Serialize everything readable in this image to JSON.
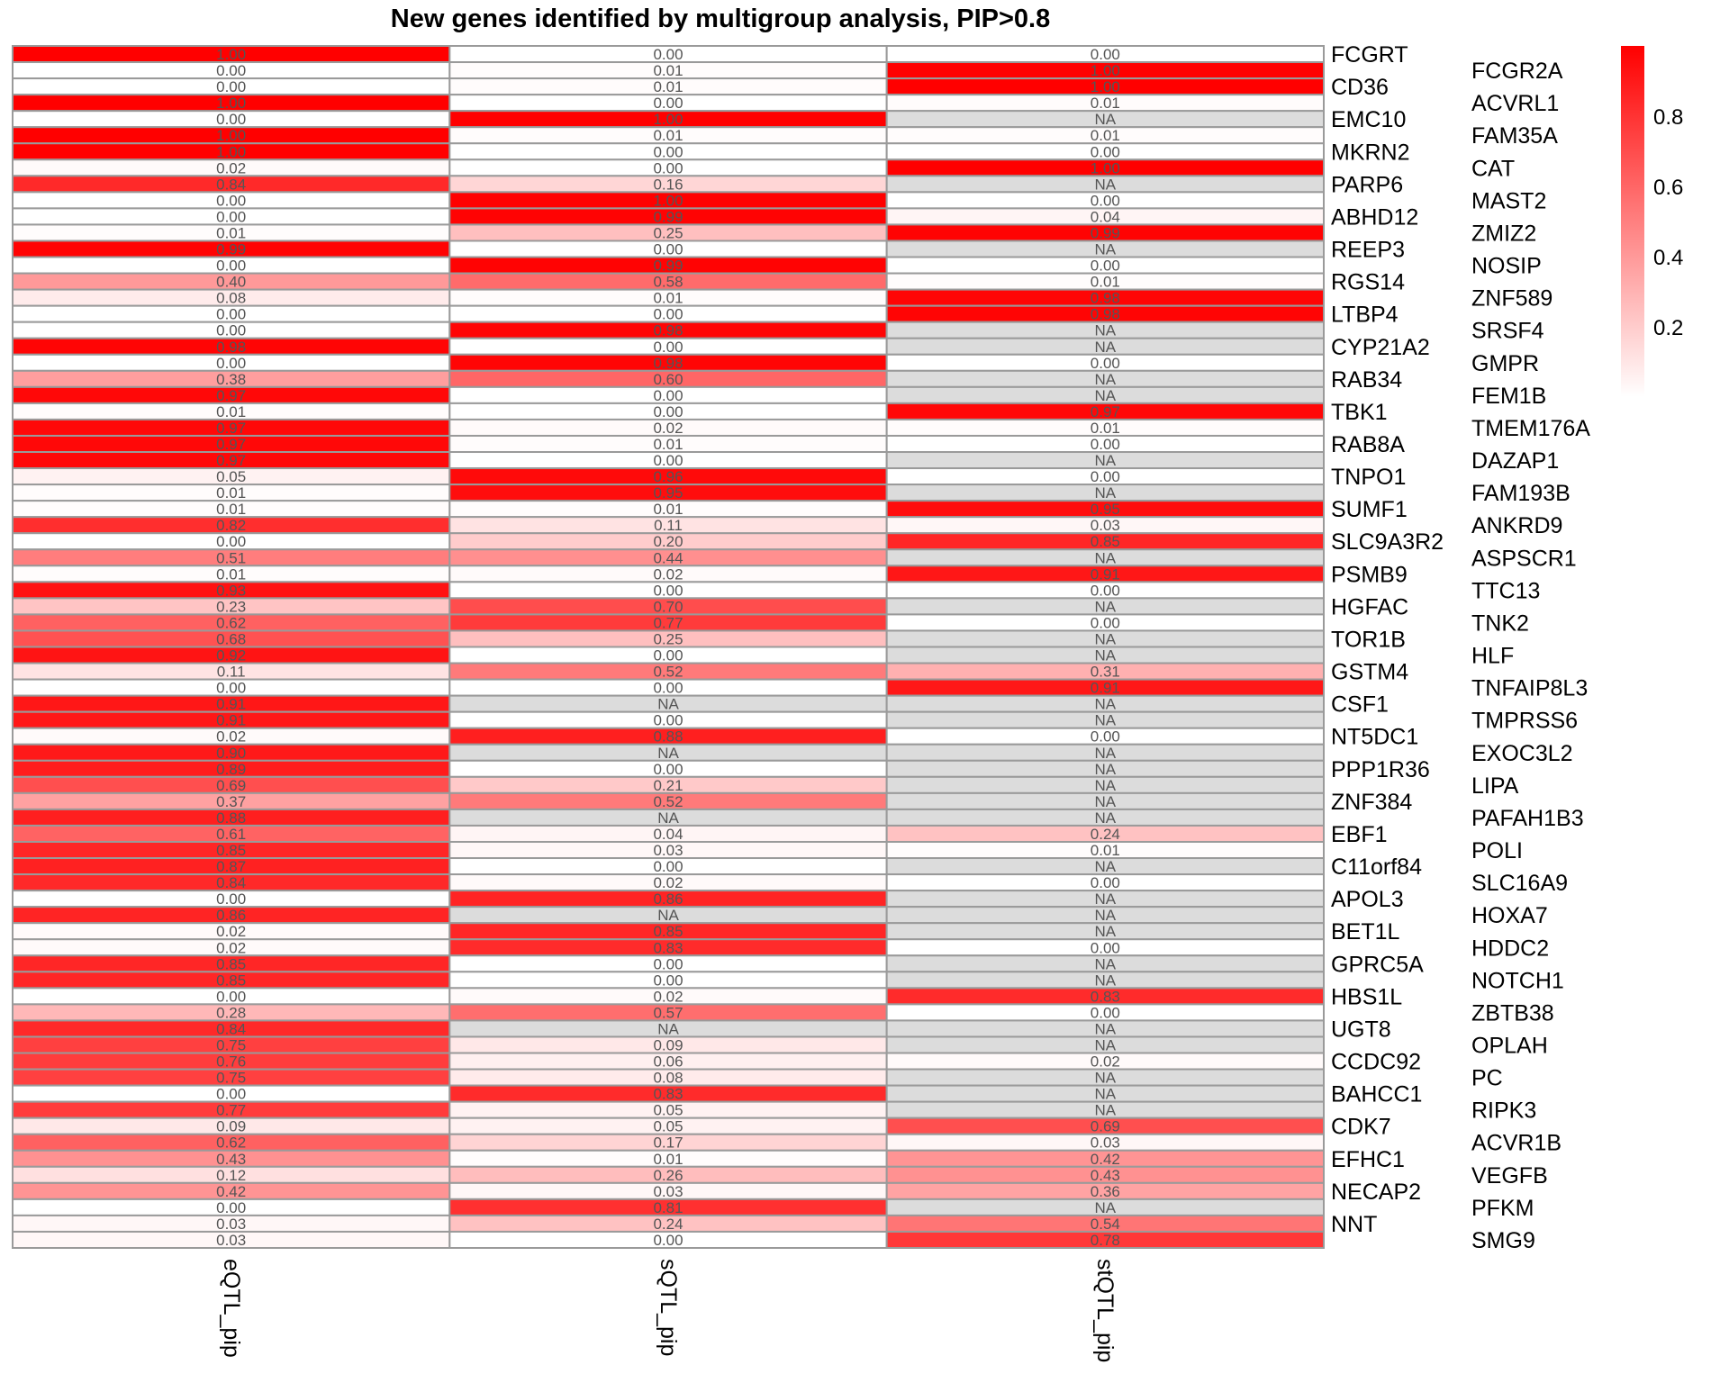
{
  "chart_data": {
    "type": "heatmap",
    "title": "New genes identified by multigroup analysis, PIP>0.8",
    "columns": [
      "eQTL_pip",
      "sQTL_pip",
      "stQTL_pip"
    ],
    "na_label": "NA",
    "value_range": [
      0,
      1
    ],
    "colors": {
      "low": "#ffffff",
      "high": "#ff0000",
      "na": "#dcdcdc",
      "border": "#9a9a9a",
      "cell_text": "#555555"
    },
    "legend": {
      "position": "right",
      "ticks": [
        0.2,
        0.4,
        0.6,
        0.8
      ],
      "tick_labels": [
        "0.2",
        "0.4",
        "0.6",
        "0.8"
      ]
    },
    "rows": [
      {
        "gene": "FCGRT",
        "values": [
          1.0,
          0.0,
          0.0
        ]
      },
      {
        "gene": "FCGR2A",
        "values": [
          0.0,
          0.01,
          1.0
        ]
      },
      {
        "gene": "CD36",
        "values": [
          0.0,
          0.01,
          1.0
        ]
      },
      {
        "gene": "ACVRL1",
        "values": [
          1.0,
          0.0,
          0.01
        ]
      },
      {
        "gene": "EMC10",
        "values": [
          0.0,
          1.0,
          null
        ]
      },
      {
        "gene": "FAM35A",
        "values": [
          1.0,
          0.01,
          0.01
        ]
      },
      {
        "gene": "MKRN2",
        "values": [
          1.0,
          0.0,
          0.0
        ]
      },
      {
        "gene": "CAT",
        "values": [
          0.02,
          0.0,
          1.0
        ]
      },
      {
        "gene": "PARP6",
        "values": [
          0.84,
          0.16,
          null
        ]
      },
      {
        "gene": "MAST2",
        "values": [
          0.0,
          1.0,
          0.0
        ]
      },
      {
        "gene": "ABHD12",
        "values": [
          0.0,
          0.99,
          0.04
        ]
      },
      {
        "gene": "ZMIZ2",
        "values": [
          0.01,
          0.25,
          0.99
        ]
      },
      {
        "gene": "REEP3",
        "values": [
          0.99,
          0.0,
          null
        ]
      },
      {
        "gene": "NOSIP",
        "values": [
          0.0,
          0.99,
          0.0
        ]
      },
      {
        "gene": "RGS14",
        "values": [
          0.4,
          0.58,
          0.01
        ]
      },
      {
        "gene": "ZNF589",
        "values": [
          0.08,
          0.01,
          0.98
        ]
      },
      {
        "gene": "LTBP4",
        "values": [
          0.0,
          0.0,
          0.98
        ]
      },
      {
        "gene": "SRSF4",
        "values": [
          0.0,
          0.98,
          null
        ]
      },
      {
        "gene": "CYP21A2",
        "values": [
          0.98,
          0.0,
          null
        ]
      },
      {
        "gene": "GMPR",
        "values": [
          0.0,
          0.98,
          0.0
        ]
      },
      {
        "gene": "RAB34",
        "values": [
          0.38,
          0.6,
          null
        ]
      },
      {
        "gene": "FEM1B",
        "values": [
          0.97,
          0.0,
          null
        ]
      },
      {
        "gene": "TBK1",
        "values": [
          0.01,
          0.0,
          0.97
        ]
      },
      {
        "gene": "TMEM176A",
        "values": [
          0.97,
          0.02,
          0.01
        ]
      },
      {
        "gene": "RAB8A",
        "values": [
          0.97,
          0.01,
          0.0
        ]
      },
      {
        "gene": "DAZAP1",
        "values": [
          0.97,
          0.0,
          null
        ]
      },
      {
        "gene": "TNPO1",
        "values": [
          0.05,
          0.96,
          0.0
        ]
      },
      {
        "gene": "FAM193B",
        "values": [
          0.01,
          0.95,
          null
        ]
      },
      {
        "gene": "SUMF1",
        "values": [
          0.01,
          0.01,
          0.95
        ]
      },
      {
        "gene": "ANKRD9",
        "values": [
          0.82,
          0.11,
          0.03
        ]
      },
      {
        "gene": "SLC9A3R2",
        "values": [
          0.0,
          0.2,
          0.85
        ]
      },
      {
        "gene": "ASPSCR1",
        "values": [
          0.51,
          0.44,
          null
        ]
      },
      {
        "gene": "PSMB9",
        "values": [
          0.01,
          0.02,
          0.91
        ]
      },
      {
        "gene": "TTC13",
        "values": [
          0.93,
          0.0,
          0.0
        ]
      },
      {
        "gene": "HGFAC",
        "values": [
          0.23,
          0.7,
          null
        ]
      },
      {
        "gene": "TNK2",
        "values": [
          0.62,
          0.77,
          0.0
        ]
      },
      {
        "gene": "TOR1B",
        "values": [
          0.68,
          0.25,
          null
        ]
      },
      {
        "gene": "HLF",
        "values": [
          0.92,
          0.0,
          null
        ]
      },
      {
        "gene": "GSTM4",
        "values": [
          0.11,
          0.52,
          0.31
        ]
      },
      {
        "gene": "TNFAIP8L3",
        "values": [
          0.0,
          0.0,
          0.91
        ]
      },
      {
        "gene": "CSF1",
        "values": [
          0.91,
          null,
          null
        ]
      },
      {
        "gene": "TMPRSS6",
        "values": [
          0.91,
          0.0,
          null
        ]
      },
      {
        "gene": "NT5DC1",
        "values": [
          0.02,
          0.88,
          0.0
        ]
      },
      {
        "gene": "EXOC3L2",
        "values": [
          0.9,
          null,
          null
        ]
      },
      {
        "gene": "PPP1R36",
        "values": [
          0.89,
          0.0,
          null
        ]
      },
      {
        "gene": "LIPA",
        "values": [
          0.69,
          0.21,
          null
        ]
      },
      {
        "gene": "ZNF384",
        "values": [
          0.37,
          0.52,
          null
        ]
      },
      {
        "gene": "PAFAH1B3",
        "values": [
          0.88,
          null,
          null
        ]
      },
      {
        "gene": "EBF1",
        "values": [
          0.61,
          0.04,
          0.24
        ]
      },
      {
        "gene": "POLI",
        "values": [
          0.85,
          0.03,
          0.01
        ]
      },
      {
        "gene": "C11orf84",
        "values": [
          0.87,
          0.0,
          null
        ]
      },
      {
        "gene": "SLC16A9",
        "values": [
          0.84,
          0.02,
          0.0
        ]
      },
      {
        "gene": "APOL3",
        "values": [
          0.0,
          0.86,
          null
        ]
      },
      {
        "gene": "HOXA7",
        "values": [
          0.86,
          null,
          null
        ]
      },
      {
        "gene": "BET1L",
        "values": [
          0.02,
          0.85,
          null
        ]
      },
      {
        "gene": "HDDC2",
        "values": [
          0.02,
          0.83,
          0.0
        ]
      },
      {
        "gene": "GPRC5A",
        "values": [
          0.85,
          0.0,
          null
        ]
      },
      {
        "gene": "NOTCH1",
        "values": [
          0.85,
          0.0,
          null
        ]
      },
      {
        "gene": "HBS1L",
        "values": [
          0.0,
          0.02,
          0.83
        ]
      },
      {
        "gene": "ZBTB38",
        "values": [
          0.28,
          0.57,
          0.0
        ]
      },
      {
        "gene": "UGT8",
        "values": [
          0.84,
          null,
          null
        ]
      },
      {
        "gene": "OPLAH",
        "values": [
          0.75,
          0.09,
          null
        ]
      },
      {
        "gene": "CCDC92",
        "values": [
          0.76,
          0.06,
          0.02
        ]
      },
      {
        "gene": "PC",
        "values": [
          0.75,
          0.08,
          null
        ]
      },
      {
        "gene": "BAHCC1",
        "values": [
          0.0,
          0.83,
          null
        ]
      },
      {
        "gene": "RIPK3",
        "values": [
          0.77,
          0.05,
          null
        ]
      },
      {
        "gene": "CDK7",
        "values": [
          0.09,
          0.05,
          0.69
        ]
      },
      {
        "gene": "ACVR1B",
        "values": [
          0.62,
          0.17,
          0.03
        ]
      },
      {
        "gene": "EFHC1",
        "values": [
          0.43,
          0.01,
          0.42
        ]
      },
      {
        "gene": "VEGFB",
        "values": [
          0.12,
          0.26,
          0.43
        ]
      },
      {
        "gene": "NECAP2",
        "values": [
          0.42,
          0.03,
          0.36
        ]
      },
      {
        "gene": "PFKM",
        "values": [
          0.0,
          0.81,
          null
        ]
      },
      {
        "gene": "NNT",
        "values": [
          0.03,
          0.24,
          0.54
        ]
      },
      {
        "gene": "SMG9",
        "values": [
          0.03,
          0.0,
          0.78
        ]
      }
    ]
  }
}
